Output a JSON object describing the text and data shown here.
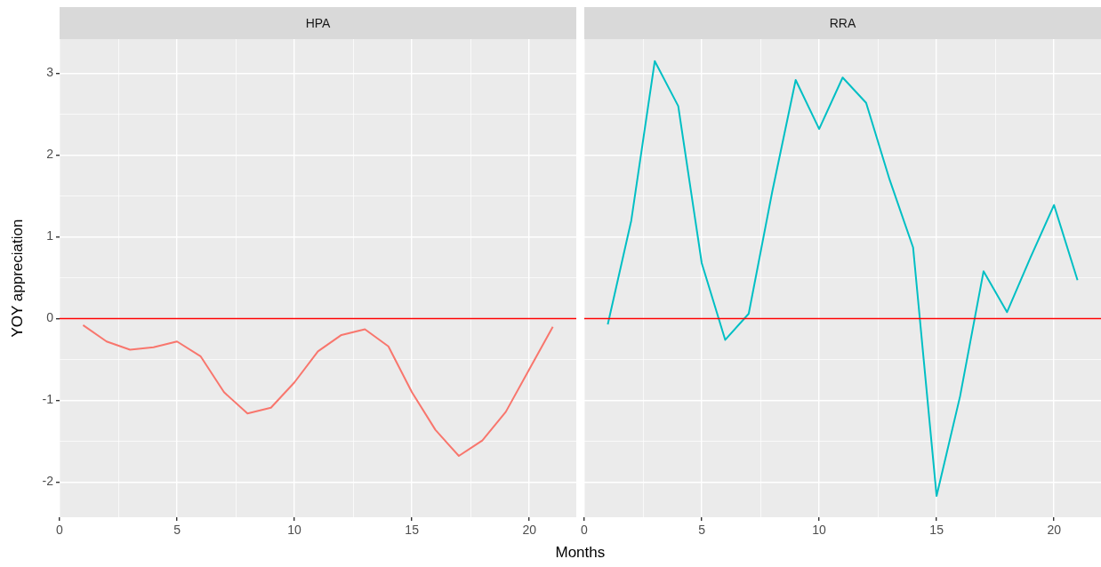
{
  "chart_data": [
    {
      "type": "line",
      "title": "HPA",
      "xlabel": "Months",
      "ylabel": "YOY appreciation",
      "x": [
        1,
        2,
        3,
        4,
        5,
        6,
        7,
        8,
        9,
        10,
        11,
        12,
        13,
        14,
        15,
        16,
        17,
        18,
        19,
        20,
        21
      ],
      "values": [
        -0.08,
        -0.28,
        -0.38,
        -0.35,
        -0.28,
        -0.46,
        -0.9,
        -1.16,
        -1.09,
        -0.78,
        -0.4,
        -0.2,
        -0.13,
        -0.34,
        -0.9,
        -1.36,
        -1.68,
        -1.49,
        -1.14,
        -0.62,
        -0.1
      ],
      "color": "#f8766d",
      "xlim": [
        0,
        22
      ],
      "ylim": [
        -2.43,
        3.42
      ],
      "xticks": [
        0,
        {
          "value": 2.5,
          "label": null
        },
        5,
        {
          "value": 7.5,
          "label": null
        },
        10,
        {
          "value": 12.5,
          "label": null
        },
        15,
        {
          "value": 17.5,
          "label": null
        },
        20
      ],
      "yticks": [
        -2,
        {
          "value": -1.5,
          "label": null
        },
        -1,
        {
          "value": -0.5,
          "label": null
        },
        0,
        {
          "value": 0.5,
          "label": null
        },
        1,
        {
          "value": 1.5,
          "label": null
        },
        2,
        {
          "value": 2.5,
          "label": null
        },
        3
      ],
      "grid": true,
      "ref_lines": [
        {
          "axis": "y",
          "value": 0,
          "color": "#ff0000"
        }
      ]
    },
    {
      "type": "line",
      "title": "RRA",
      "x": [
        1,
        2,
        3,
        4,
        5,
        6,
        7,
        8,
        9,
        10,
        11,
        12,
        13,
        14,
        15,
        16,
        17,
        18,
        19,
        20,
        21
      ],
      "values": [
        -0.07,
        1.2,
        3.15,
        2.6,
        0.68,
        -0.26,
        0.06,
        1.55,
        2.92,
        2.32,
        2.95,
        2.64,
        1.7,
        0.87,
        -2.17,
        -0.95,
        0.58,
        0.08,
        0.75,
        1.39,
        0.47
      ],
      "color": "#00bfc4",
      "xlim": [
        0,
        22
      ],
      "ylim": [
        -2.43,
        3.42
      ],
      "xticks": [
        0,
        {
          "value": 2.5,
          "label": null
        },
        5,
        {
          "value": 7.5,
          "label": null
        },
        10,
        {
          "value": 12.5,
          "label": null
        },
        15,
        {
          "value": 17.5,
          "label": null
        },
        20
      ],
      "yticks": [
        -2,
        {
          "value": -1.5,
          "label": null
        },
        -1,
        {
          "value": -0.5,
          "label": null
        },
        0,
        {
          "value": 0.5,
          "label": null
        },
        1,
        {
          "value": 1.5,
          "label": null
        },
        2,
        {
          "value": 2.5,
          "label": null
        },
        3
      ],
      "grid": true,
      "tick_labels": "x",
      "ref_lines": [
        {
          "axis": "y",
          "value": 0,
          "color": "#ff0000"
        }
      ]
    }
  ]
}
